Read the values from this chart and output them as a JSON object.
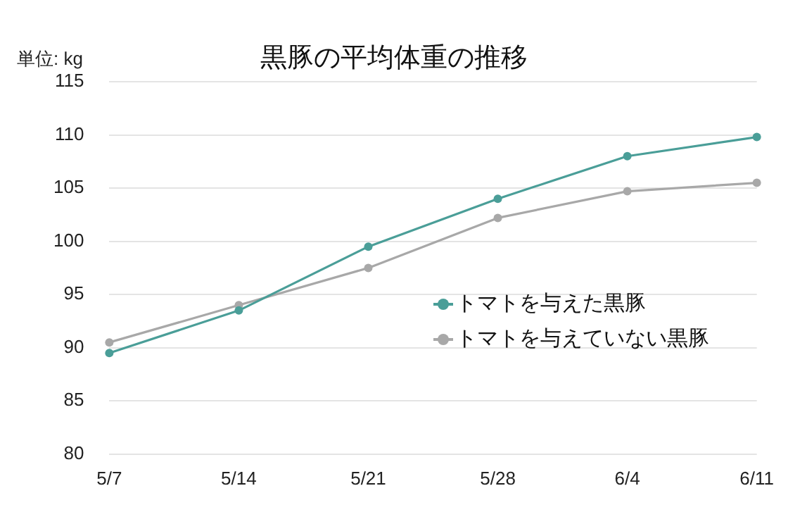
{
  "chart_data": {
    "type": "line",
    "title": "黒豚の平均体重の推移",
    "ylabel": "単位: kg",
    "categories": [
      "5/7",
      "5/14",
      "5/21",
      "5/28",
      "6/4",
      "6/11"
    ],
    "series": [
      {
        "name": "トマトを与えた黒豚",
        "color": "#4a9e98",
        "values": [
          89.5,
          93.5,
          99.5,
          104,
          108,
          109.8
        ]
      },
      {
        "name": "トマトを与えていない黒豚",
        "color": "#a8a8a8",
        "values": [
          90.5,
          94,
          97.5,
          102.2,
          104.7,
          105.5
        ]
      }
    ],
    "ylim": [
      80,
      115
    ],
    "yticks": [
      80,
      85,
      90,
      95,
      100,
      105,
      110,
      115
    ],
    "grid": "y",
    "legend": "right",
    "marker": "circle",
    "line_style": "solid"
  }
}
